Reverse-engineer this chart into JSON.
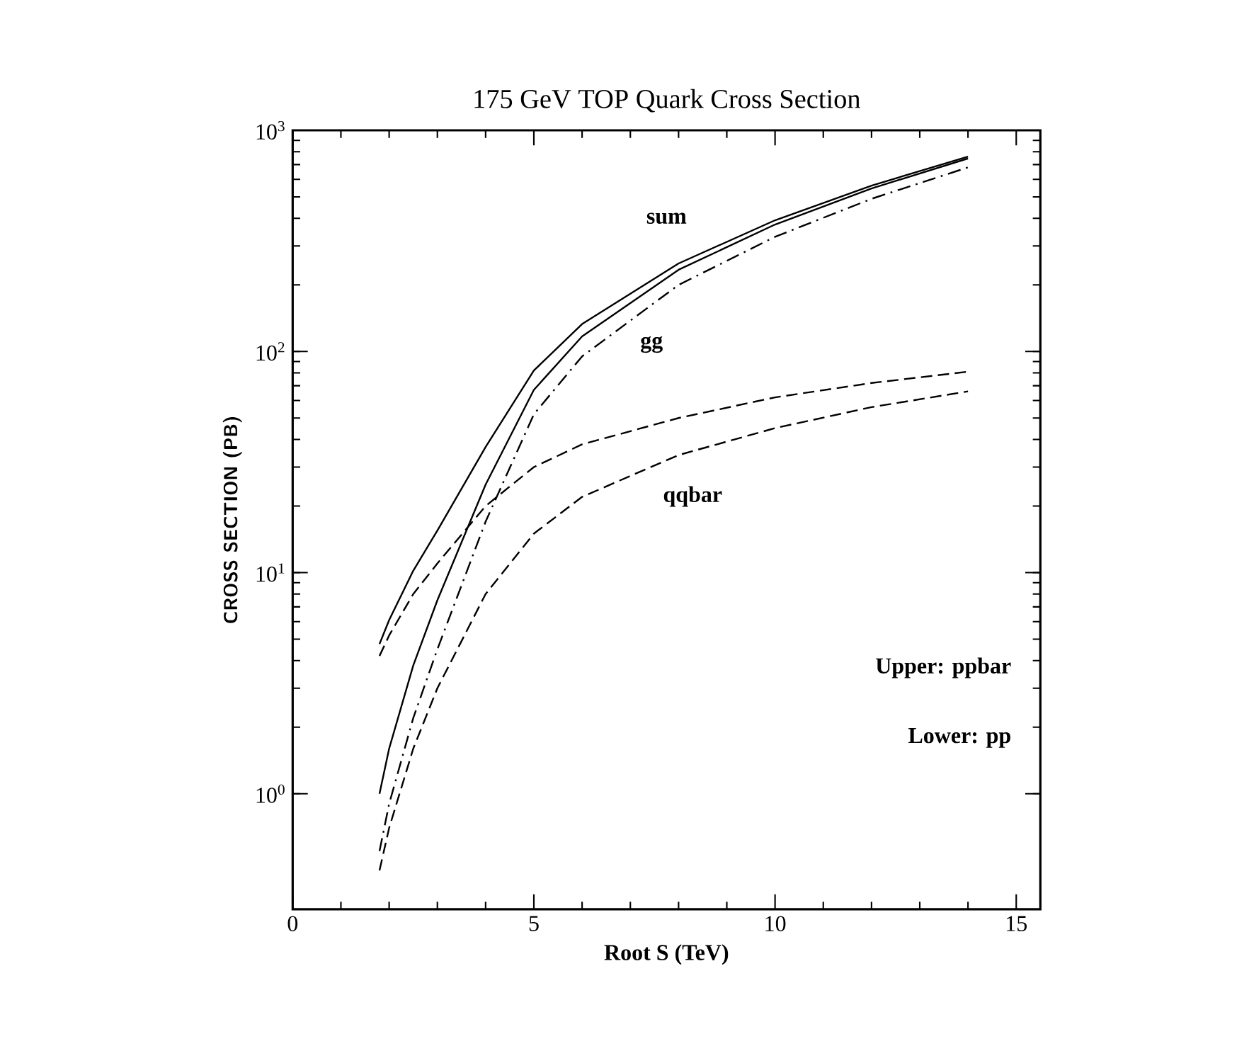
{
  "chart_data": {
    "type": "line",
    "title": "175 GeV TOP Quark Cross Section",
    "xlabel": "Root S  (TeV)",
    "ylabel": "CROSS SECTION (PB)",
    "x": [
      1.8,
      2,
      2.5,
      3,
      4,
      5,
      6,
      8,
      10,
      12,
      14
    ],
    "series": [
      {
        "color": "#000000",
        "line_style": "solid",
        "values": [
          4.75,
          6.1,
          10.2,
          15.5,
          37,
          82,
          133,
          250,
          392,
          562,
          761
        ]
      },
      {
        "color": "#000000",
        "line_style": "solid",
        "values": [
          1.0,
          1.6,
          3.8,
          7.5,
          25,
          67,
          117,
          234,
          375,
          546,
          746
        ]
      },
      {
        "color": "#000000",
        "line_style": "dashdot",
        "values": [
          0.55,
          0.9,
          2.2,
          4.5,
          17,
          52,
          95,
          200,
          330,
          490,
          680
        ]
      },
      {
        "color": "#000000",
        "line_style": "dashed",
        "values": [
          4.2,
          5.2,
          8,
          11,
          20,
          30,
          38,
          50,
          62,
          72,
          81
        ]
      },
      {
        "color": "#000000",
        "line_style": "dashed",
        "values": [
          0.45,
          0.7,
          1.6,
          3.0,
          8,
          15,
          22,
          34,
          45,
          56,
          66
        ]
      }
    ],
    "log": "y",
    "grid": false,
    "marker": "none",
    "xlim": [
      0,
      15.5
    ],
    "ylim": [
      0.3,
      1000
    ],
    "xticks": [
      0,
      5,
      10,
      15
    ],
    "yticks": [
      {
        "value": 1,
        "label": "10$^{0}$"
      },
      {
        "value": 10,
        "label": "10$^{1}$"
      },
      {
        "value": 100,
        "label": "10$^{2}$"
      },
      {
        "value": 1000,
        "label": "10$^{3}$"
      }
    ],
    "annotations": [
      "sum",
      "gg",
      "qqbar",
      "Upper: ppbar",
      "Lower: pp"
    ]
  }
}
